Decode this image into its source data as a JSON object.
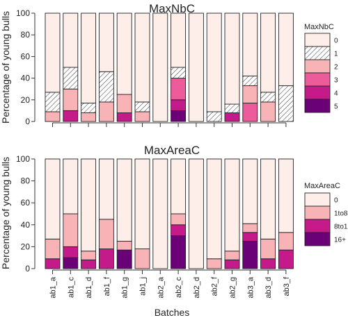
{
  "colors": {
    "nb": {
      "0": "#FDEEE9",
      "1": "#FFFFFF",
      "2": "#F8B3B6",
      "3": "#EC5B9A",
      "4": "#C51B8A",
      "5": "#6A0177"
    },
    "area": {
      "0": "#FDEEE9",
      "1to8": "#F8B3B6",
      "8to16": "#C51B8A",
      "16+": "#6A0177"
    },
    "hatched_levels": [
      "1"
    ]
  },
  "chart_data": [
    {
      "type": "bar",
      "stacked": true,
      "title": "MaxNbC",
      "ylabel": "Percentage of young bulls",
      "xlabel": "",
      "ylim": [
        0,
        100
      ],
      "yticks": [
        0,
        20,
        40,
        60,
        80,
        100
      ],
      "categories": [
        "ab1_a",
        "ab1_c",
        "ab1_d",
        "ab1_f",
        "ab1_g",
        "ab1_j",
        "ab2_a",
        "ab2_c",
        "ab2_d",
        "ab2_f",
        "ab2_g",
        "ab3_a",
        "ab3_d",
        "ab3_f"
      ],
      "legend_title": "MaxNbC",
      "legend_position": "right",
      "series": [
        {
          "name": "5",
          "values": [
            0,
            0,
            0,
            0,
            0,
            0,
            0,
            10,
            0,
            0,
            0,
            0,
            0,
            0
          ]
        },
        {
          "name": "4",
          "values": [
            0,
            10,
            0,
            0,
            8,
            0,
            0,
            10,
            0,
            0,
            8,
            0,
            0,
            0
          ]
        },
        {
          "name": "3",
          "values": [
            0,
            0,
            0,
            0,
            0,
            0,
            0,
            20,
            0,
            0,
            0,
            17,
            0,
            0
          ]
        },
        {
          "name": "2",
          "values": [
            9,
            20,
            8,
            18,
            17,
            9,
            0,
            0,
            0,
            0,
            0,
            16,
            18,
            0
          ]
        },
        {
          "name": "1",
          "values": [
            18,
            20,
            9,
            28,
            0,
            9,
            0,
            10,
            0,
            9,
            8,
            9,
            9,
            33
          ]
        },
        {
          "name": "0",
          "values": [
            73,
            50,
            83,
            54,
            75,
            82,
            100,
            50,
            100,
            91,
            84,
            58,
            73,
            67
          ]
        }
      ]
    },
    {
      "type": "bar",
      "stacked": true,
      "title": "MaxAreaC",
      "ylabel": "Percentage of young bulls",
      "xlabel": "Batches",
      "ylim": [
        0,
        100
      ],
      "yticks": [
        0,
        20,
        40,
        60,
        80,
        100
      ],
      "categories": [
        "ab1_a",
        "ab1_c",
        "ab1_d",
        "ab1_f",
        "ab1_g",
        "ab1_j",
        "ab2_a",
        "ab2_c",
        "ab2_d",
        "ab2_f",
        "ab2_g",
        "ab3_a",
        "ab3_d",
        "ab3_f"
      ],
      "legend_title": "MaxAreaC",
      "legend_position": "right",
      "series": [
        {
          "name": "16+",
          "values": [
            0,
            10,
            0,
            0,
            17,
            0,
            0,
            30,
            0,
            0,
            0,
            25,
            0,
            0
          ]
        },
        {
          "name": "8to16",
          "values": [
            9,
            10,
            8,
            18,
            0,
            0,
            0,
            10,
            0,
            0,
            8,
            8,
            9,
            17
          ]
        },
        {
          "name": "1to8",
          "values": [
            18,
            30,
            8,
            27,
            8,
            18,
            0,
            10,
            0,
            9,
            8,
            8,
            18,
            16
          ]
        },
        {
          "name": "0",
          "values": [
            73,
            50,
            84,
            55,
            75,
            82,
            100,
            50,
            100,
            91,
            84,
            59,
            73,
            67
          ]
        }
      ]
    }
  ]
}
